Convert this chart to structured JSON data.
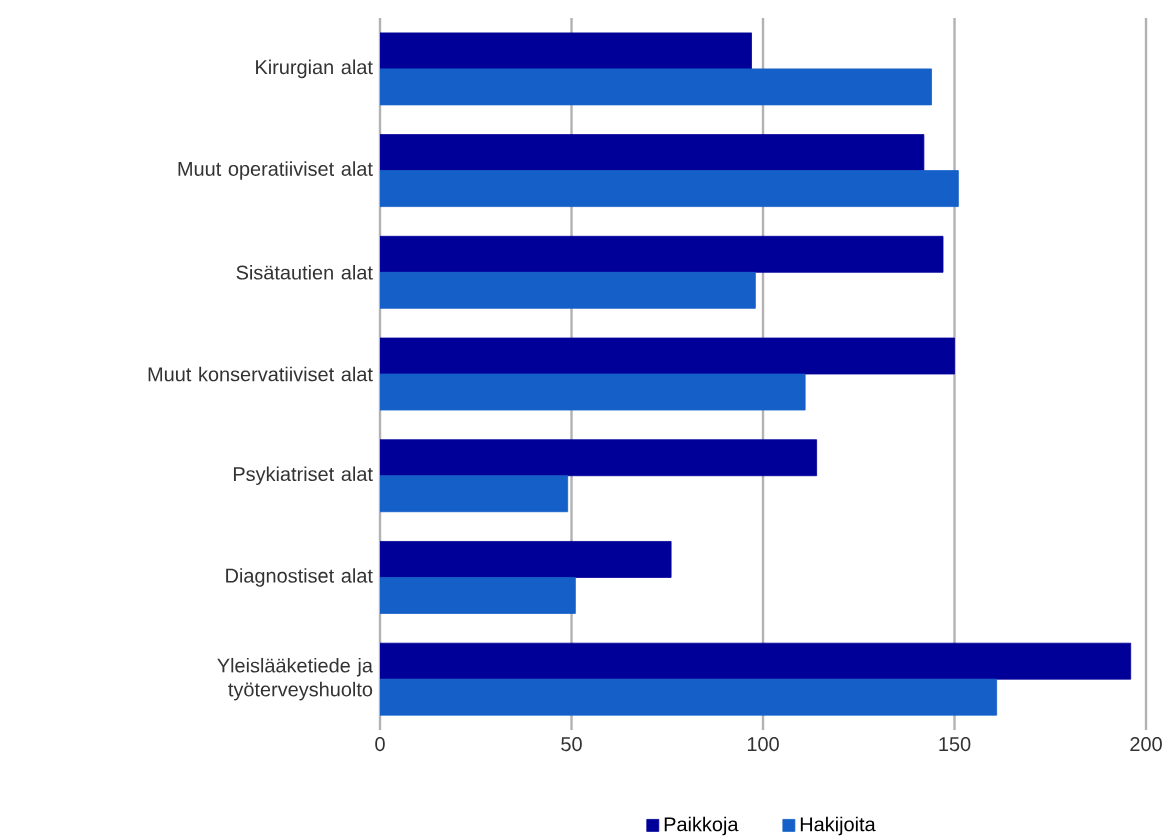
{
  "chart_data": {
    "type": "bar",
    "orientation": "horizontal",
    "categories": [
      "Kirurgian alat",
      "Muut operatiiviset alat",
      "Sisätautien alat",
      "Muut konservatiiviset alat",
      "Psykiatriset alat",
      "Diagnostiset alat",
      "Yleislääketiede ja työterveyshuolto"
    ],
    "series": [
      {
        "name": "Paikkoja",
        "color": "#000099",
        "values": [
          97,
          142,
          147,
          150,
          114,
          76,
          196
        ]
      },
      {
        "name": "Hakijoita",
        "color": "#1560c8",
        "values": [
          144,
          151,
          98,
          111,
          49,
          51,
          161
        ]
      }
    ],
    "xlim": [
      0,
      200
    ],
    "xticks": [
      0,
      50,
      100,
      150,
      200
    ],
    "grid": "x",
    "legend": "bottom"
  }
}
